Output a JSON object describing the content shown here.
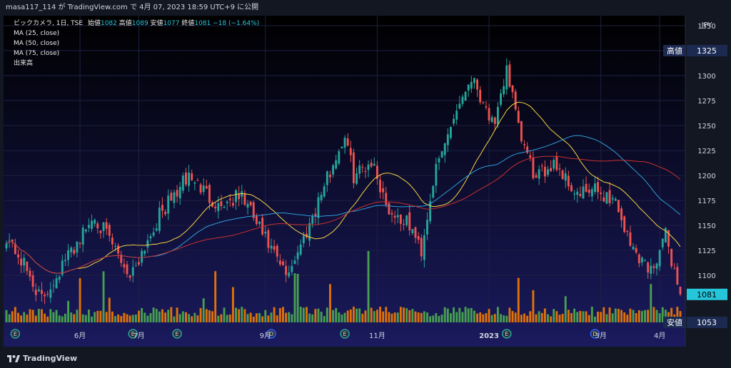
{
  "header": {
    "attribution": "masa117_114 が TradingView.com で 4月 07, 2023 18:59 UTC+9 に公開"
  },
  "legend": {
    "symbol": "ビックカメラ, 1日, TSE",
    "open_label": "始値",
    "open": "1082",
    "high_label": "高値",
    "high": "1089",
    "low_label": "安値",
    "low": "1077",
    "close_label": "終値",
    "close": "1081",
    "change": "−18 (−1.64%)",
    "ma25": "MA (25, close)",
    "ma50": "MA (50, close)",
    "ma75": "MA (75, close)",
    "volume": "出来高"
  },
  "price_tags": {
    "high_label": "高値",
    "high_value": "1325",
    "last_value": "1081",
    "low_label": "安値",
    "low_value": "1053"
  },
  "footer": {
    "logo_text": "TradingView"
  },
  "colors": {
    "up": "#26a69a",
    "down": "#ef5350",
    "ma25": "#f5d442",
    "ma50": "#2f9fd8",
    "ma75": "#c9302c",
    "vol_up": "#4caf50",
    "vol_down": "#f57c00",
    "background_top": "#000000",
    "background_bottom": "#1a1a5e",
    "tag_bg": "#1c2a52",
    "last_tag_bg": "#26c6da"
  },
  "chart_data": {
    "type": "candlestick",
    "currency": "JPY",
    "interval": "1日",
    "ylim": [
      1053,
      1360
    ],
    "y_ticks": [
      1100,
      1125,
      1150,
      1175,
      1200,
      1225,
      1250,
      1275,
      1300,
      1325,
      1350
    ],
    "x_ticks": [
      {
        "label": "6月",
        "index": 25,
        "bold": false
      },
      {
        "label": "7月",
        "index": 45,
        "bold": false
      },
      {
        "label": "9月",
        "index": 88,
        "bold": false
      },
      {
        "label": "11月",
        "index": 126,
        "bold": false
      },
      {
        "label": "2023",
        "index": 164,
        "bold": true
      },
      {
        "label": "3月",
        "index": 202,
        "bold": false
      },
      {
        "label": "4月",
        "index": 222,
        "bold": false
      }
    ],
    "events": [
      {
        "type": "E",
        "index": 3
      },
      {
        "type": "E",
        "index": 43
      },
      {
        "type": "E",
        "index": 58
      },
      {
        "type": "D",
        "index": 90
      },
      {
        "type": "E",
        "index": 115
      },
      {
        "type": "E",
        "index": 170
      },
      {
        "type": "D",
        "index": 200
      }
    ],
    "keypoints": [
      [
        0,
        1140
      ],
      [
        6,
        1110
      ],
      [
        12,
        1075
      ],
      [
        20,
        1115
      ],
      [
        30,
        1160
      ],
      [
        42,
        1100
      ],
      [
        52,
        1160
      ],
      [
        62,
        1200
      ],
      [
        72,
        1170
      ],
      [
        80,
        1180
      ],
      [
        90,
        1125
      ],
      [
        95,
        1100
      ],
      [
        100,
        1130
      ],
      [
        108,
        1190
      ],
      [
        115,
        1240
      ],
      [
        118,
        1200
      ],
      [
        124,
        1215
      ],
      [
        130,
        1165
      ],
      [
        137,
        1150
      ],
      [
        141,
        1125
      ],
      [
        145,
        1195
      ],
      [
        152,
        1260
      ],
      [
        158,
        1300
      ],
      [
        162,
        1275
      ],
      [
        166,
        1245
      ],
      [
        170,
        1310
      ],
      [
        174,
        1245
      ],
      [
        180,
        1195
      ],
      [
        186,
        1215
      ],
      [
        194,
        1180
      ],
      [
        200,
        1185
      ],
      [
        207,
        1175
      ],
      [
        212,
        1130
      ],
      [
        219,
        1105
      ],
      [
        224,
        1140
      ],
      [
        229,
        1081
      ]
    ],
    "last_close": 1081,
    "high": 1325,
    "low": 1053,
    "volume_note": "relative volume bars at bottom of chart"
  }
}
